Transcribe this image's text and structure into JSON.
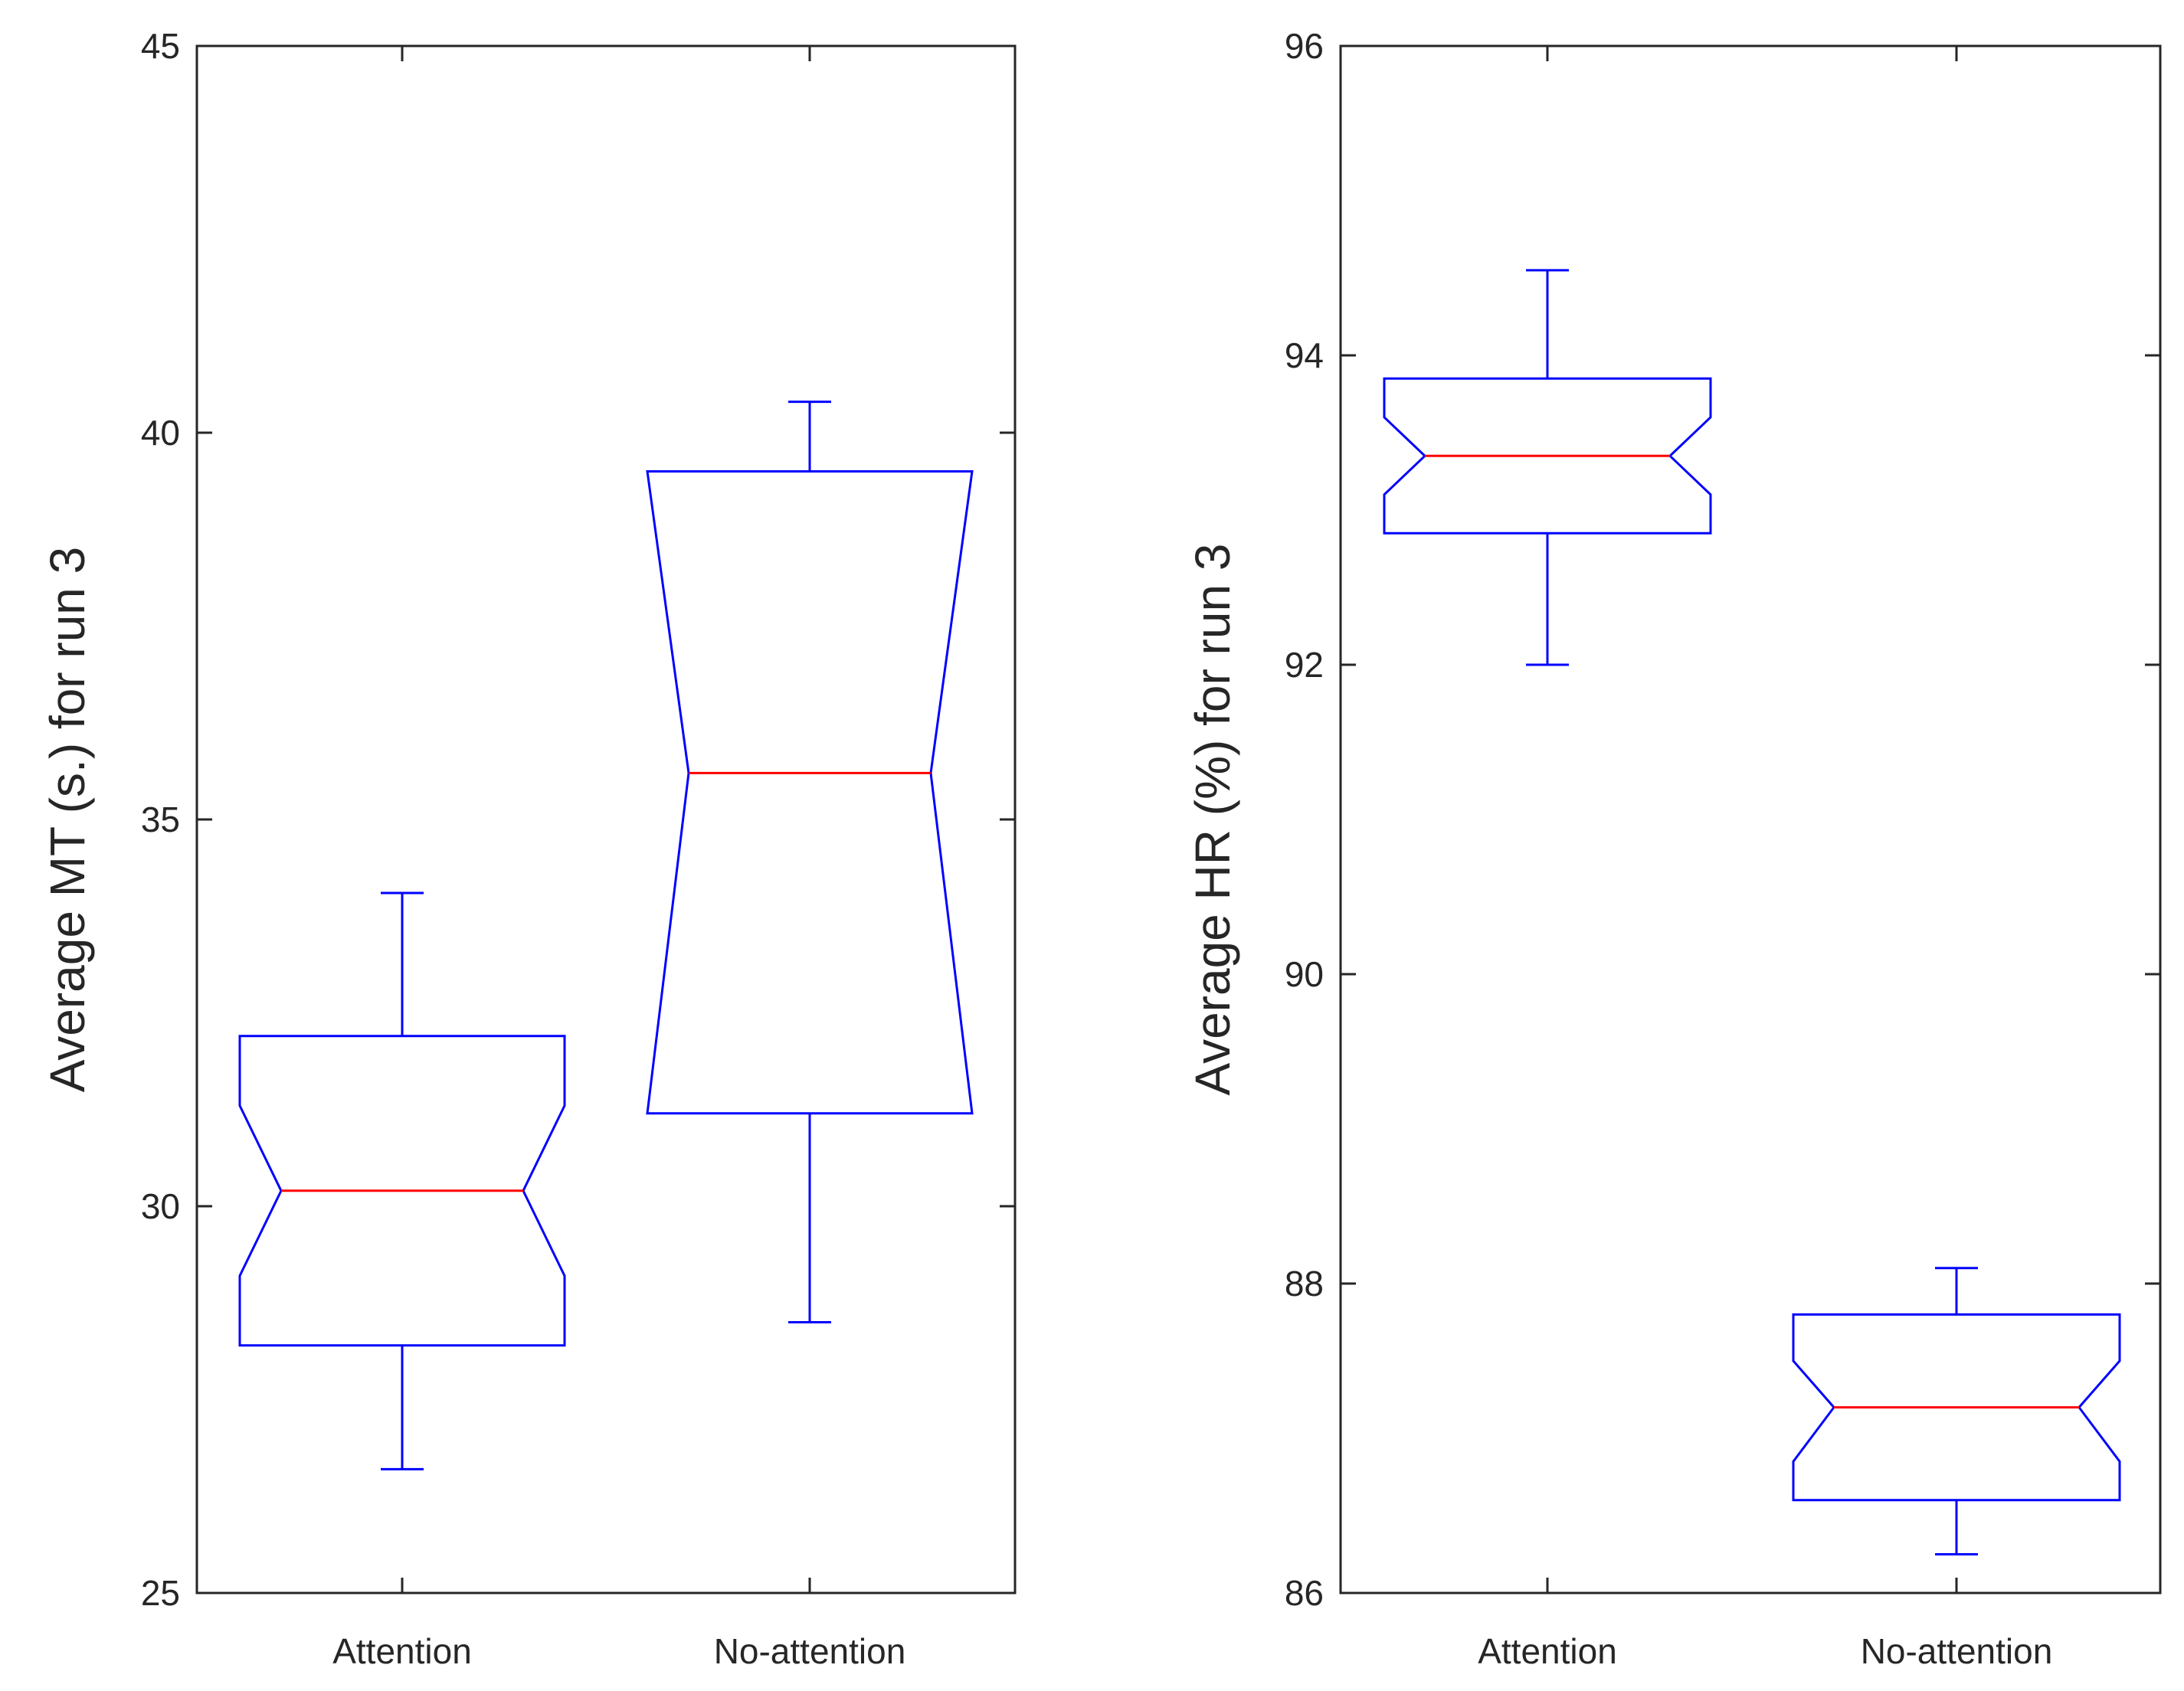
{
  "chart_data": [
    {
      "type": "boxplot",
      "title": "",
      "xlabel": "",
      "ylabel": "Average MT (s.) for run 3",
      "ylim": [
        25,
        45
      ],
      "yticks": [
        25,
        30,
        35,
        40,
        45
      ],
      "ytick_labels": [
        "25",
        "30",
        "35",
        "40",
        "45"
      ],
      "categories": [
        "Attention",
        "No-attention"
      ],
      "boxes": [
        {
          "category": "Attention",
          "whisker_low": 26.6,
          "q1": 28.2,
          "notch_low": 29.1,
          "median": 30.2,
          "notch_high": 31.3,
          "q3": 32.2,
          "whisker_high": 34.05
        },
        {
          "category": "No-attention",
          "whisker_low": 28.5,
          "q1": 31.2,
          "notch_low": 31.2,
          "median": 35.6,
          "notch_high": 39.5,
          "q3": 39.5,
          "whisker_high": 40.4
        }
      ],
      "colors": {
        "box": "#0000ff",
        "median": "#ff0000",
        "axis": "#262626"
      }
    },
    {
      "type": "boxplot",
      "title": "",
      "xlabel": "",
      "ylabel": "Average HR (%) for run 3",
      "ylim": [
        86,
        96
      ],
      "yticks": [
        86,
        88,
        90,
        92,
        94,
        96
      ],
      "ytick_labels": [
        "86",
        "88",
        "90",
        "92",
        "94",
        "96"
      ],
      "categories": [
        "Attention",
        "No-attention"
      ],
      "boxes": [
        {
          "category": "Attention",
          "whisker_low": 92.0,
          "q1": 92.85,
          "notch_low": 93.1,
          "median": 93.35,
          "notch_high": 93.6,
          "q3": 93.85,
          "whisker_high": 94.55
        },
        {
          "category": "No-attention",
          "whisker_low": 86.25,
          "q1": 86.6,
          "notch_low": 86.85,
          "median": 87.2,
          "notch_high": 87.5,
          "q3": 87.8,
          "whisker_high": 88.1
        }
      ],
      "colors": {
        "box": "#0000ff",
        "median": "#ff0000",
        "axis": "#262626"
      }
    }
  ]
}
